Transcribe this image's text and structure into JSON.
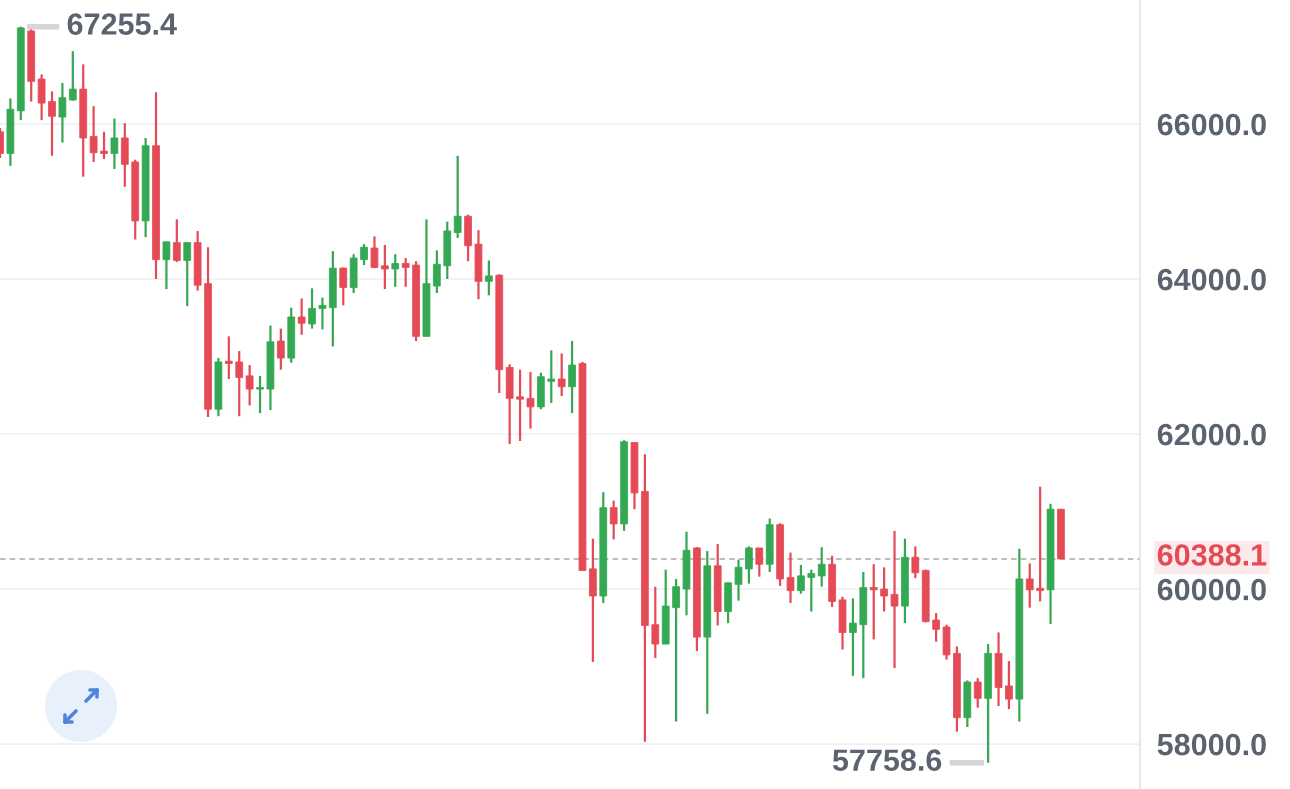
{
  "chart_data": {
    "type": "candlestick",
    "categories": [
      null,
      null,
      null,
      null,
      null,
      null,
      null,
      null,
      null,
      null,
      null,
      null,
      null,
      null,
      null,
      null,
      null,
      null,
      null,
      null,
      null,
      null,
      null,
      null,
      null,
      null,
      null,
      null,
      null,
      null,
      null,
      null,
      null,
      null,
      null,
      null,
      null,
      null,
      null,
      null,
      null,
      null,
      null,
      null,
      null,
      null,
      null,
      null,
      null,
      null,
      null,
      null,
      null,
      null,
      null,
      null,
      null,
      null,
      null,
      null,
      null,
      null,
      null,
      null,
      null,
      null,
      null,
      null,
      null,
      null,
      null,
      null,
      null,
      null,
      null,
      null,
      null,
      null,
      null,
      null,
      null,
      null,
      null,
      null,
      null,
      null,
      null,
      null,
      null,
      null,
      null,
      null,
      null,
      null,
      null,
      null,
      null,
      null,
      null,
      null,
      null,
      null,
      null
    ],
    "ohlc": [
      [
        65900,
        65950,
        65560,
        65620
      ],
      [
        65620,
        66330,
        65460,
        66190
      ],
      [
        66170,
        67255.4,
        66050,
        67240
      ],
      [
        67200,
        67230,
        66290,
        66550
      ],
      [
        66580,
        66640,
        66050,
        66270
      ],
      [
        66290,
        66420,
        65590,
        66100
      ],
      [
        66090,
        66530,
        65760,
        66340
      ],
      [
        66310,
        66940,
        66300,
        66450
      ],
      [
        66450,
        66770,
        65320,
        65820
      ],
      [
        65840,
        66230,
        65510,
        65630
      ],
      [
        65650,
        65900,
        65550,
        65620
      ],
      [
        65620,
        66070,
        65420,
        65820
      ],
      [
        65820,
        66010,
        65190,
        65480
      ],
      [
        65510,
        65540,
        64510,
        64750
      ],
      [
        64750,
        65820,
        64540,
        65720
      ],
      [
        65720,
        66410,
        64000,
        64250
      ],
      [
        64250,
        64480,
        63870,
        64480
      ],
      [
        64470,
        64770,
        64220,
        64240
      ],
      [
        64240,
        64470,
        63650,
        64470
      ],
      [
        64470,
        64620,
        63850,
        63920
      ],
      [
        63940,
        64410,
        62220,
        62320
      ],
      [
        62320,
        62980,
        62230,
        62930
      ],
      [
        62940,
        63260,
        62710,
        62910
      ],
      [
        62930,
        63070,
        62230,
        62730
      ],
      [
        62750,
        62890,
        62370,
        62580
      ],
      [
        62580,
        62750,
        62270,
        62600
      ],
      [
        62580,
        63400,
        62310,
        63190
      ],
      [
        63200,
        63360,
        62830,
        62980
      ],
      [
        62980,
        63630,
        62920,
        63510
      ],
      [
        63510,
        63750,
        63280,
        63430
      ],
      [
        63420,
        63880,
        63360,
        63620
      ],
      [
        63620,
        63760,
        63350,
        63660
      ],
      [
        63630,
        64360,
        63130,
        64140
      ],
      [
        64140,
        64150,
        63660,
        63890
      ],
      [
        63890,
        64320,
        63820,
        64270
      ],
      [
        64250,
        64450,
        64180,
        64410
      ],
      [
        64400,
        64550,
        64140,
        64150
      ],
      [
        64170,
        64440,
        63870,
        64130
      ],
      [
        64130,
        64320,
        63900,
        64200
      ],
      [
        64200,
        64270,
        63900,
        64150
      ],
      [
        64180,
        64230,
        63200,
        63260
      ],
      [
        63260,
        64770,
        63260,
        63940
      ],
      [
        63910,
        64370,
        63820,
        64190
      ],
      [
        64170,
        64740,
        64000,
        64620
      ],
      [
        64600,
        65590,
        64530,
        64810
      ],
      [
        64810,
        64830,
        64230,
        64430
      ],
      [
        64450,
        64630,
        63740,
        63970
      ],
      [
        63970,
        64240,
        63790,
        64040
      ],
      [
        64050,
        64060,
        62530,
        62830
      ],
      [
        62860,
        62900,
        61870,
        62460
      ],
      [
        62480,
        62830,
        61910,
        62450
      ],
      [
        62460,
        62800,
        62070,
        62350
      ],
      [
        62350,
        62790,
        62320,
        62740
      ],
      [
        62680,
        63080,
        62400,
        62710
      ],
      [
        62710,
        63040,
        62490,
        62610
      ],
      [
        62610,
        63200,
        62270,
        62890
      ],
      [
        62910,
        62930,
        60240,
        60240
      ],
      [
        60260,
        60650,
        59060,
        59910
      ],
      [
        59910,
        61250,
        59820,
        61050
      ],
      [
        61050,
        61140,
        60640,
        60840
      ],
      [
        60840,
        61920,
        60750,
        61900
      ],
      [
        61890,
        61890,
        61030,
        61240
      ],
      [
        61260,
        61740,
        58030,
        59530
      ],
      [
        59540,
        60030,
        59110,
        59290
      ],
      [
        59290,
        60250,
        59290,
        59780
      ],
      [
        59760,
        60130,
        58290,
        60030
      ],
      [
        60000,
        60740,
        59660,
        60500
      ],
      [
        60530,
        60540,
        59200,
        59380
      ],
      [
        59380,
        60490,
        58390,
        60300
      ],
      [
        60300,
        60580,
        59530,
        59710
      ],
      [
        59710,
        60090,
        59560,
        60080
      ],
      [
        60060,
        60380,
        59850,
        60280
      ],
      [
        60260,
        60550,
        60070,
        60530
      ],
      [
        60530,
        60530,
        60160,
        60320
      ],
      [
        60320,
        60910,
        60220,
        60830
      ],
      [
        60830,
        60850,
        60040,
        60130
      ],
      [
        60150,
        60470,
        59820,
        59980
      ],
      [
        59980,
        60310,
        59940,
        60170
      ],
      [
        60150,
        60250,
        59710,
        60200
      ],
      [
        60170,
        60540,
        60030,
        60320
      ],
      [
        60320,
        60430,
        59770,
        59840
      ],
      [
        59860,
        59900,
        59220,
        59440
      ],
      [
        59440,
        59880,
        58880,
        59560
      ],
      [
        59540,
        60220,
        58850,
        60020
      ],
      [
        60020,
        60320,
        59350,
        59990
      ],
      [
        60000,
        60280,
        59710,
        59910
      ],
      [
        59930,
        60750,
        58980,
        59780
      ],
      [
        59780,
        60650,
        59560,
        60410
      ],
      [
        60410,
        60550,
        60140,
        60210
      ],
      [
        60240,
        60250,
        59570,
        59580
      ],
      [
        59600,
        59690,
        59320,
        59480
      ],
      [
        59510,
        59540,
        59090,
        59150
      ],
      [
        59170,
        59260,
        58160,
        58340
      ],
      [
        58340,
        58820,
        58220,
        58800
      ],
      [
        58800,
        58850,
        58470,
        58590
      ],
      [
        58590,
        59290,
        57758.6,
        59170
      ],
      [
        59170,
        59440,
        58490,
        58730
      ],
      [
        58750,
        59070,
        58450,
        58580
      ],
      [
        58580,
        60520,
        58290,
        60130
      ],
      [
        60130,
        60330,
        59760,
        59990
      ],
      [
        60010,
        61320,
        59840,
        59980
      ],
      [
        59990,
        61100,
        59550,
        61030
      ],
      [
        61030,
        61030,
        60388.1,
        60388.1
      ]
    ],
    "colors": [
      "#e44b57",
      "#35a853",
      "#35a853",
      "#e44b57",
      "#e44b57",
      "#e44b57",
      "#35a853",
      "#35a853",
      "#e44b57",
      "#e44b57",
      "#e44b57",
      "#35a853",
      "#e44b57",
      "#e44b57",
      "#35a853",
      "#e44b57",
      "#35a853",
      "#e44b57",
      "#35a853",
      "#e44b57",
      "#e44b57",
      "#35a853",
      "#e44b57",
      "#e44b57",
      "#e44b57",
      "#35a853",
      "#35a853",
      "#e44b57",
      "#35a853",
      "#e44b57",
      "#35a853",
      "#35a853",
      "#35a853",
      "#e44b57",
      "#35a853",
      "#35a853",
      "#e44b57",
      "#e44b57",
      "#35a853",
      "#e44b57",
      "#e44b57",
      "#35a853",
      "#35a853",
      "#35a853",
      "#35a853",
      "#e44b57",
      "#e44b57",
      "#35a853",
      "#e44b57",
      "#e44b57",
      "#e44b57",
      "#e44b57",
      "#35a853",
      "#35a853",
      "#e44b57",
      "#35a853",
      "#e44b57",
      "#e44b57",
      "#35a853",
      "#e44b57",
      "#35a853",
      "#e44b57",
      "#e44b57",
      "#e44b57",
      "#35a853",
      "#35a853",
      "#35a853",
      "#e44b57",
      "#35a853",
      "#e44b57",
      "#35a853",
      "#35a853",
      "#35a853",
      "#e44b57",
      "#35a853",
      "#e44b57",
      "#e44b57",
      "#35a853",
      "#35a853",
      "#35a853",
      "#e44b57",
      "#e44b57",
      "#35a853",
      "#35a853",
      "#e44b57",
      "#e44b57",
      "#e44b57",
      "#35a853",
      "#e44b57",
      "#e44b57",
      "#e44b57",
      "#e44b57",
      "#e44b57",
      "#35a853",
      "#e44b57",
      "#35a853",
      "#e44b57",
      "#e44b57",
      "#35a853",
      "#e44b57",
      "#e44b57",
      "#35a853",
      "#e44b57"
    ],
    "ylim": [
      57420,
      67600
    ],
    "yticks": [
      {
        "value": 58000,
        "label": "58000.0"
      },
      {
        "value": 60000,
        "label": "60000.0"
      },
      {
        "value": 62000,
        "label": "62000.0"
      },
      {
        "value": 64000,
        "label": "64000.0"
      },
      {
        "value": 66000,
        "label": "66000.0"
      }
    ],
    "grid": "y",
    "tick_labels": "y",
    "ref_lines": [
      {
        "axis": "y",
        "value": 60388.1,
        "label": "60388.1",
        "color": "#a8a8a8",
        "line_style": "dashed"
      }
    ],
    "annotations": [
      "67255.4",
      "57758.6"
    ]
  }
}
